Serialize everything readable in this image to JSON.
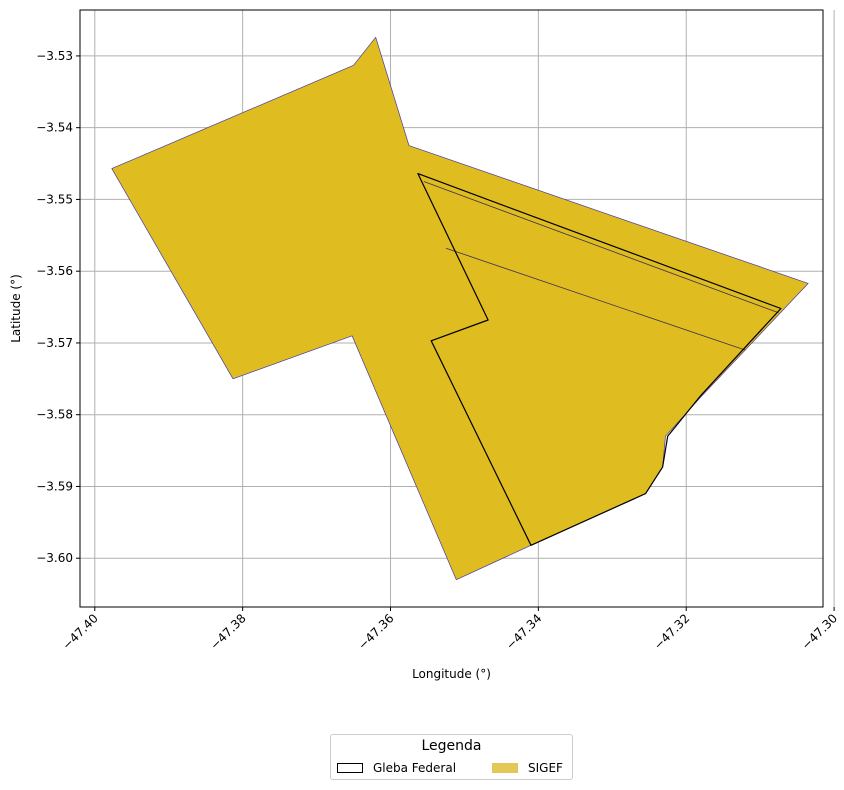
{
  "chart_data": {
    "type": "map",
    "title": "",
    "xlabel": "Longitude (°)",
    "ylabel": "Latitude (°)",
    "xlim": [
      -47.402,
      -47.3015
    ],
    "ylim": [
      -3.6068,
      -3.5236
    ],
    "x_ticks": [
      -47.4,
      -47.38,
      -47.36,
      -47.34,
      -47.32,
      -47.3
    ],
    "x_tick_labels": [
      "−47.40",
      "−47.38",
      "−47.36",
      "−47.34",
      "−47.32",
      "−47.30"
    ],
    "y_ticks": [
      -3.53,
      -3.54,
      -3.55,
      -3.56,
      -3.57,
      -3.58,
      -3.59,
      -3.6
    ],
    "y_tick_labels": [
      "−3.53",
      "−3.54",
      "−3.55",
      "−3.56",
      "−3.57",
      "−3.58",
      "−3.59",
      "−3.60"
    ],
    "grid": true,
    "layers": [
      {
        "name": "SIGEF",
        "fill": "#dfbc20",
        "edge": "#4a3aa0",
        "polygons": [
          [
            [
              -47.3977,
              -3.5457
            ],
            [
              -47.365,
              -3.5313
            ],
            [
              -47.362,
              -3.5274
            ],
            [
              -47.3575,
              -3.5425
            ],
            [
              -47.3035,
              -3.5617
            ],
            [
              -47.318,
              -3.5775
            ],
            [
              -47.3228,
              -3.583
            ],
            [
              -47.3232,
              -3.5873
            ],
            [
              -47.3255,
              -3.591
            ],
            [
              -47.341,
              -3.5982
            ],
            [
              -47.3511,
              -3.603
            ],
            [
              -47.3652,
              -3.569
            ],
            [
              -47.3813,
              -3.575
            ]
          ]
        ],
        "lines": [
          [
            [
              -47.3555,
              -3.5475
            ],
            [
              -47.3075,
              -3.5658
            ]
          ],
          [
            [
              -47.3525,
              -3.5568
            ],
            [
              -47.312,
              -3.571
            ]
          ]
        ]
      },
      {
        "name": "Gleba Federal",
        "fill": "none",
        "edge": "#000000",
        "polygons": [
          [
            [
              -47.3563,
              -3.5464
            ],
            [
              -47.3072,
              -3.5652
            ],
            [
              -47.318,
              -3.5773
            ],
            [
              -47.3225,
              -3.583
            ],
            [
              -47.3232,
              -3.5873
            ],
            [
              -47.3255,
              -3.591
            ],
            [
              -47.341,
              -3.5982
            ],
            [
              -47.3545,
              -3.5697
            ],
            [
              -47.3468,
              -3.5668
            ]
          ]
        ]
      }
    ],
    "legend": {
      "title": "Legenda",
      "position": "bottom-center",
      "entries": [
        {
          "label": "Gleba Federal",
          "style": "outline",
          "color": "#000000"
        },
        {
          "label": "SIGEF",
          "style": "fill",
          "color": "#e3c857"
        }
      ]
    }
  }
}
